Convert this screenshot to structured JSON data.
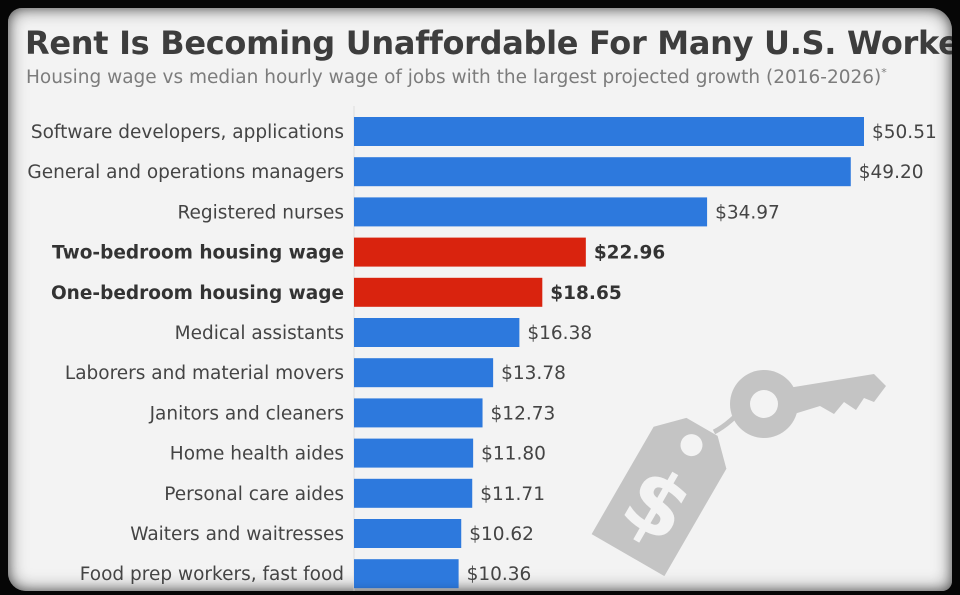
{
  "title": "Rent Is Becoming Unaffordable For Many U.S. Workers",
  "subtitle": "Housing wage vs median hourly wage of jobs with the largest projected growth (2016-2026)",
  "subtitle_marker": "*",
  "colors": {
    "job_bar": "#2d79dd",
    "housing_bar": "#d9230e",
    "illustration": "#c4c4c4"
  },
  "illustration_icons": [
    "price-tag-icon",
    "dollar-sign-icon",
    "key-icon"
  ],
  "chart_data": {
    "type": "bar",
    "orientation": "horizontal",
    "grid": false,
    "categories": [
      "Software developers, applications",
      "General and operations managers",
      "Registered nurses",
      "Two-bedroom housing wage",
      "One-bedroom housing wage",
      "Medical assistants",
      "Laborers and material movers",
      "Janitors and cleaners",
      "Home health aides",
      "Personal care aides",
      "Waiters and waitresses",
      "Food prep workers, fast food"
    ],
    "values": [
      50.51,
      49.2,
      34.97,
      22.96,
      18.65,
      16.38,
      13.78,
      12.73,
      11.8,
      11.71,
      10.62,
      10.36
    ],
    "value_labels": [
      "$50.51",
      "$49.20",
      "$34.97",
      "$22.96",
      "$18.65",
      "$16.38",
      "$13.78",
      "$12.73",
      "$11.80",
      "$11.71",
      "$10.62",
      "$10.36"
    ],
    "highlighted": [
      false,
      false,
      false,
      true,
      true,
      false,
      false,
      false,
      false,
      false,
      false,
      false
    ],
    "xlim": [
      0,
      50.51
    ]
  }
}
